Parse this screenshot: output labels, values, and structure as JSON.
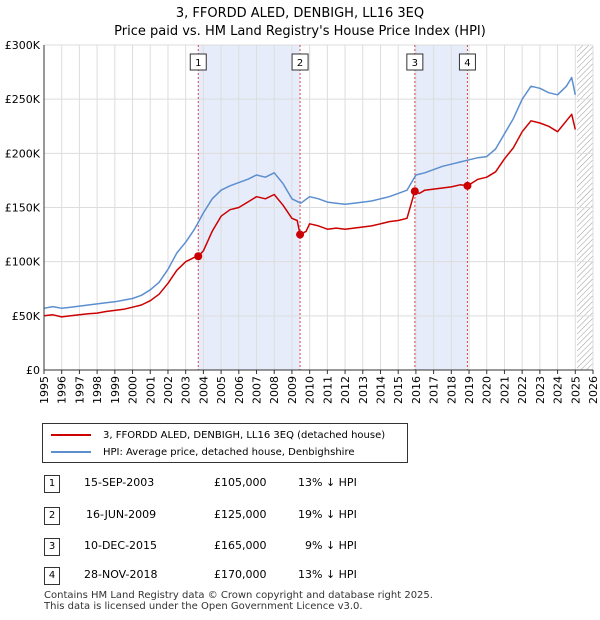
{
  "title": "3, FFORDD ALED, DENBIGH, LL16 3EQ",
  "subtitle": "Price paid vs. HM Land Registry's House Price Index (HPI)",
  "colors": {
    "property": "#cc0000",
    "hpi": "#5b8fd0",
    "shade": "#e6ecfa",
    "grid": "#dddddd"
  },
  "chart_data": {
    "type": "line",
    "xlim": [
      1995,
      2026
    ],
    "ylim": [
      0,
      300000
    ],
    "yticks": [
      {
        "value": 0,
        "label": "£0"
      },
      {
        "value": 50000,
        "label": "£50K"
      },
      {
        "value": 100000,
        "label": "£100K"
      },
      {
        "value": 150000,
        "label": "£150K"
      },
      {
        "value": 200000,
        "label": "£200K"
      },
      {
        "value": 250000,
        "label": "£250K"
      },
      {
        "value": 300000,
        "label": "£300K"
      }
    ],
    "xticks": [
      "1995",
      "1996",
      "1997",
      "1998",
      "1999",
      "2000",
      "2001",
      "2002",
      "2003",
      "2004",
      "2005",
      "2006",
      "2007",
      "2008",
      "2009",
      "2010",
      "2011",
      "2012",
      "2013",
      "2014",
      "2015",
      "2016",
      "2017",
      "2018",
      "2019",
      "2020",
      "2021",
      "2022",
      "2023",
      "2024",
      "2025",
      "2026"
    ],
    "shaded_ranges": [
      [
        2003.71,
        2009.46
      ],
      [
        2015.94,
        2018.91
      ]
    ],
    "hatch_from": 2025.1,
    "series": [
      {
        "name": "3, FFORDD ALED, DENBIGH, LL16 3EQ (detached house)",
        "key": "property",
        "x": [
          1995.0,
          1995.5,
          1996.0,
          1996.5,
          1997.0,
          1997.5,
          1998.0,
          1998.5,
          1999.0,
          1999.5,
          2000.0,
          2000.5,
          2001.0,
          2001.5,
          2002.0,
          2002.5,
          2003.0,
          2003.5,
          2003.71,
          2004.0,
          2004.5,
          2005.0,
          2005.5,
          2006.0,
          2006.5,
          2007.0,
          2007.5,
          2008.0,
          2008.5,
          2009.0,
          2009.3,
          2009.46,
          2009.8,
          2010.0,
          2010.5,
          2011.0,
          2011.5,
          2012.0,
          2012.5,
          2013.0,
          2013.5,
          2014.0,
          2014.5,
          2015.0,
          2015.5,
          2015.94,
          2016.2,
          2016.5,
          2017.0,
          2017.5,
          2018.0,
          2018.5,
          2018.91,
          2019.2,
          2019.5,
          2020.0,
          2020.5,
          2021.0,
          2021.5,
          2022.0,
          2022.5,
          2023.0,
          2023.5,
          2024.0,
          2024.5,
          2024.8,
          2025.0
        ],
        "y": [
          50000,
          51000,
          49000,
          50000,
          51000,
          52000,
          52500,
          54000,
          55000,
          56000,
          58000,
          60000,
          64000,
          70000,
          80000,
          92000,
          100000,
          104000,
          105000,
          110000,
          128000,
          142000,
          148000,
          150000,
          155000,
          160000,
          158000,
          162000,
          152000,
          140000,
          138000,
          125000,
          128000,
          135000,
          133000,
          130000,
          131000,
          130000,
          131000,
          132000,
          133000,
          135000,
          137000,
          138000,
          140000,
          165000,
          163000,
          166000,
          167000,
          168000,
          169000,
          171000,
          170000,
          173000,
          176000,
          178000,
          183000,
          195000,
          205000,
          220000,
          230000,
          228000,
          225000,
          220000,
          230000,
          236000,
          222000
        ]
      },
      {
        "name": "HPI: Average price, detached house, Denbighshire",
        "key": "hpi",
        "x": [
          1995.0,
          1995.5,
          1996.0,
          1996.5,
          1997.0,
          1997.5,
          1998.0,
          1998.5,
          1999.0,
          1999.5,
          2000.0,
          2000.5,
          2001.0,
          2001.5,
          2002.0,
          2002.5,
          2003.0,
          2003.5,
          2004.0,
          2004.5,
          2005.0,
          2005.5,
          2006.0,
          2006.5,
          2007.0,
          2007.5,
          2008.0,
          2008.5,
          2009.0,
          2009.5,
          2010.0,
          2010.5,
          2011.0,
          2011.5,
          2012.0,
          2012.5,
          2013.0,
          2013.5,
          2014.0,
          2014.5,
          2015.0,
          2015.5,
          2016.0,
          2016.5,
          2017.0,
          2017.5,
          2018.0,
          2018.5,
          2019.0,
          2019.5,
          2020.0,
          2020.5,
          2021.0,
          2021.5,
          2022.0,
          2022.5,
          2023.0,
          2023.5,
          2024.0,
          2024.5,
          2024.8,
          2025.0
        ],
        "y": [
          57000,
          58500,
          57000,
          58000,
          59000,
          60000,
          61000,
          62000,
          63000,
          64500,
          66000,
          69000,
          74000,
          81000,
          93000,
          108000,
          118000,
          130000,
          145000,
          158000,
          166000,
          170000,
          173000,
          176000,
          180000,
          178000,
          182000,
          172000,
          158000,
          154000,
          160000,
          158000,
          155000,
          154000,
          153000,
          154000,
          155000,
          156000,
          158000,
          160000,
          163000,
          166000,
          180000,
          182000,
          185000,
          188000,
          190000,
          192000,
          194000,
          196000,
          197000,
          204000,
          218000,
          232000,
          250000,
          262000,
          260000,
          256000,
          254000,
          262000,
          270000,
          254000
        ]
      }
    ],
    "sales": [
      {
        "num": "1",
        "x": 2003.71,
        "price": 105000
      },
      {
        "num": "2",
        "x": 2009.46,
        "price": 125000
      },
      {
        "num": "3",
        "x": 2015.94,
        "price": 165000
      },
      {
        "num": "4",
        "x": 2018.91,
        "price": 170000
      }
    ]
  },
  "legend": {
    "property_label": "3, FFORDD ALED, DENBIGH, LL16 3EQ (detached house)",
    "hpi_label": "HPI: Average price, detached house, Denbighshire"
  },
  "table": [
    {
      "num": "1",
      "date": "15-SEP-2003",
      "price": "£105,000",
      "hpi": "13% ↓ HPI"
    },
    {
      "num": "2",
      "date": "16-JUN-2009",
      "price": "£125,000",
      "hpi": "19% ↓ HPI"
    },
    {
      "num": "3",
      "date": "10-DEC-2015",
      "price": "£165,000",
      "hpi": "9% ↓ HPI"
    },
    {
      "num": "4",
      "date": "28-NOV-2018",
      "price": "£170,000",
      "hpi": "13% ↓ HPI"
    }
  ],
  "footer": {
    "line1": "Contains HM Land Registry data © Crown copyright and database right 2025.",
    "line2": "This data is licensed under the Open Government Licence v3.0."
  }
}
